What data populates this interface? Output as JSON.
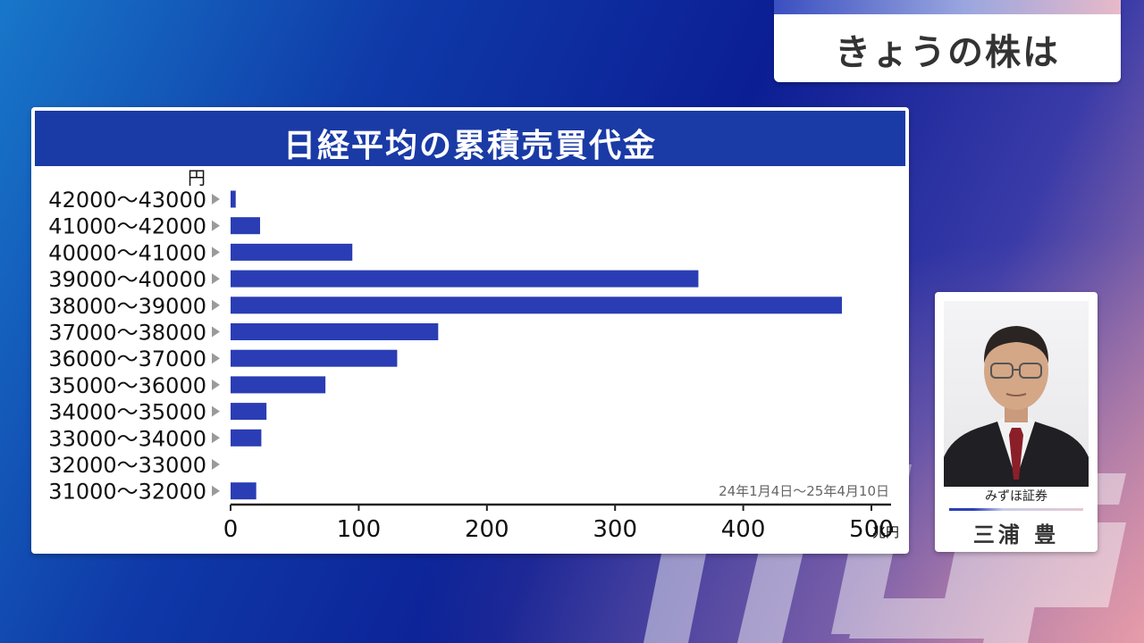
{
  "program_tab": {
    "title": "きょうの株は"
  },
  "chart_data": {
    "type": "bar",
    "orientation": "horizontal",
    "title": "日経平均の累積売買代金",
    "y_unit": "円",
    "x_unit": "兆円",
    "period": "24年1月4日〜25年4月10日",
    "categories": [
      "42000〜43000",
      "41000〜42000",
      "40000〜41000",
      "39000〜40000",
      "38000〜39000",
      "37000〜38000",
      "36000〜37000",
      "35000〜36000",
      "34000〜35000",
      "33000〜34000",
      "32000〜33000",
      "31000〜32000"
    ],
    "values": [
      4,
      23,
      95,
      365,
      477,
      162,
      130,
      74,
      28,
      24,
      0,
      20
    ],
    "xlim": [
      0,
      500
    ],
    "xticks": [
      0,
      100,
      200,
      300,
      400,
      500
    ],
    "bar_color": "#2a3db4",
    "grid": false
  },
  "commentator": {
    "organization": "みずほ証券",
    "name": "三浦 豊"
  }
}
